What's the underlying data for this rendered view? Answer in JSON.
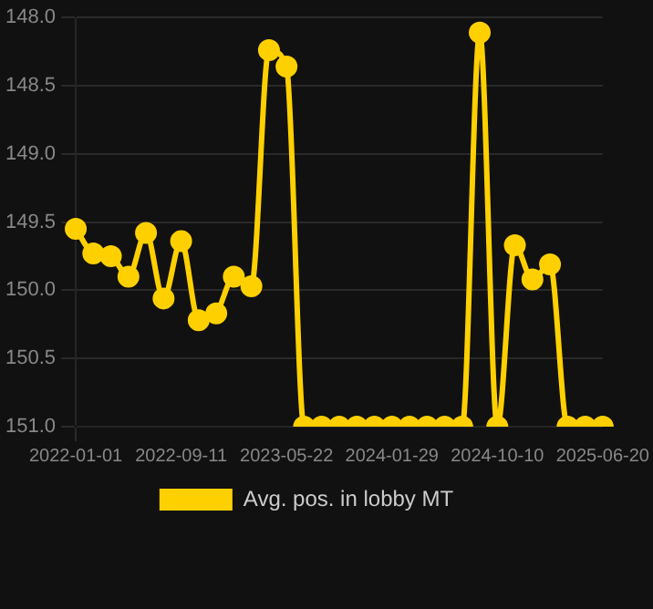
{
  "chart_data": {
    "type": "line",
    "categories": [
      "2022-01-01",
      null,
      null,
      null,
      null,
      null,
      "2022-09-11",
      null,
      null,
      null,
      null,
      null,
      "2023-05-22",
      null,
      null,
      null,
      null,
      null,
      "2024-01-29",
      null,
      null,
      null,
      null,
      null,
      "2024-10-10",
      null,
      null,
      null,
      null,
      null,
      "2025-06-20"
    ],
    "series": [
      {
        "name": "Avg. pos. in lobby MT",
        "color": "#ffd000",
        "values": [
          149.55,
          149.73,
          149.75,
          149.9,
          149.58,
          150.06,
          149.64,
          150.22,
          150.17,
          149.9,
          149.97,
          148.24,
          148.36,
          151,
          151,
          151,
          151,
          151,
          151,
          151,
          151,
          151,
          151,
          148.11,
          151,
          149.67,
          149.92,
          149.81,
          151,
          151,
          151
        ]
      }
    ],
    "ylim": [
      151,
      148
    ],
    "yticks": [
      {
        "value": 148,
        "label": "148.0"
      },
      {
        "value": 148.5,
        "label": "148.5"
      },
      {
        "value": 149,
        "label": "149.0"
      },
      {
        "value": 149.5,
        "label": "149.5"
      },
      {
        "value": 150,
        "label": "150.0"
      },
      {
        "value": 150.5,
        "label": "150.5"
      },
      {
        "value": 151,
        "label": "151.0"
      }
    ],
    "grid": true,
    "legend": "bottom",
    "marker": "circle",
    "line_style": "solid"
  }
}
